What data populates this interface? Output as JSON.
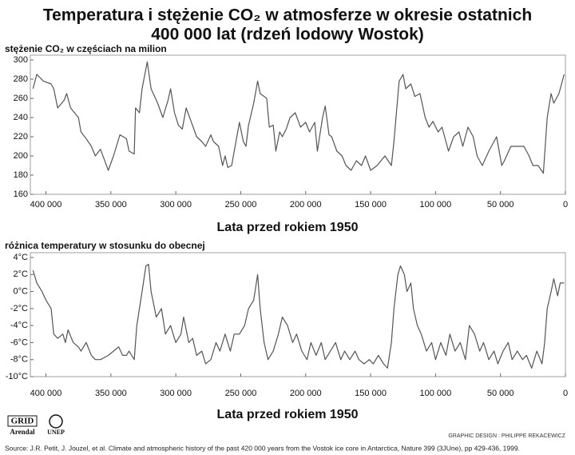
{
  "header": {
    "title_lines": [
      "Temperatura i stężenie CO₂ w atmosferze w okresie ostatnich",
      "400 000 lat (rdzeń lodowy Wostok)"
    ]
  },
  "chart_data": [
    {
      "type": "line",
      "y_label": "stężenie CO₂ w częściach na milion",
      "x_label": "Lata przed rokiem 1950",
      "xlim": [
        412000,
        0
      ],
      "ylim": [
        160,
        300
      ],
      "yticks": [
        160,
        180,
        200,
        220,
        240,
        260,
        280,
        300
      ],
      "xticks": [
        {
          "value": 400000,
          "label": "400 000"
        },
        {
          "value": 350000,
          "label": "350 000"
        },
        {
          "value": 300000,
          "label": "300 000"
        },
        {
          "value": 250000,
          "label": "250 000"
        },
        {
          "value": 200000,
          "label": "200 000"
        },
        {
          "value": 150000,
          "label": "150 000"
        },
        {
          "value": 100000,
          "label": "100 000"
        },
        {
          "value": 50000,
          "label": "50 000"
        },
        0
      ],
      "grid": false,
      "series": [
        {
          "name": "CO₂",
          "color": "#555555",
          "x": [
            410000,
            407000,
            402000,
            396000,
            394000,
            391000,
            386000,
            384000,
            381000,
            375000,
            373000,
            369000,
            365000,
            362000,
            358000,
            352000,
            348000,
            343000,
            338000,
            336000,
            332000,
            331000,
            328000,
            326000,
            322000,
            319000,
            314000,
            310000,
            306000,
            304000,
            301000,
            298000,
            295000,
            292000,
            288000,
            284000,
            280000,
            277000,
            273000,
            271000,
            267000,
            264000,
            262000,
            260000,
            257000,
            255000,
            251000,
            248000,
            246000,
            244000,
            240000,
            237000,
            235000,
            232000,
            230000,
            228000,
            225000,
            223000,
            220000,
            218000,
            215000,
            212000,
            208000,
            204000,
            200000,
            197000,
            193000,
            191000,
            187000,
            185000,
            182000,
            180000,
            176000,
            172000,
            169000,
            165000,
            161000,
            157000,
            154000,
            150000,
            145000,
            139000,
            134000,
            132000,
            128000,
            125000,
            123000,
            119000,
            116000,
            112000,
            108000,
            105000,
            102000,
            98000,
            95000,
            90000,
            86000,
            82000,
            79000,
            75000,
            71000,
            68000,
            64000,
            59000,
            53000,
            49000,
            47000,
            42000,
            37000,
            32000,
            28000,
            25000,
            21000,
            17000,
            14000,
            11000,
            9000,
            5000,
            1000
          ],
          "values": [
            270,
            285,
            278,
            275,
            270,
            250,
            258,
            265,
            250,
            240,
            225,
            218,
            210,
            200,
            207,
            185,
            200,
            222,
            218,
            205,
            202,
            250,
            245,
            270,
            298,
            270,
            255,
            240,
            258,
            270,
            245,
            232,
            228,
            250,
            235,
            220,
            215,
            210,
            222,
            215,
            210,
            190,
            200,
            188,
            190,
            205,
            235,
            215,
            210,
            232,
            255,
            278,
            265,
            262,
            260,
            230,
            232,
            205,
            225,
            220,
            228,
            240,
            245,
            230,
            235,
            225,
            235,
            205,
            240,
            252,
            222,
            220,
            205,
            200,
            190,
            185,
            195,
            190,
            200,
            185,
            190,
            200,
            190,
            215,
            278,
            285,
            270,
            275,
            262,
            265,
            240,
            230,
            236,
            225,
            230,
            205,
            220,
            225,
            210,
            230,
            220,
            200,
            190,
            205,
            220,
            190,
            195,
            210,
            210,
            210,
            200,
            190,
            190,
            182,
            240,
            265,
            255,
            265,
            285
          ]
        }
      ]
    },
    {
      "type": "line",
      "y_label": "różnica temperatury w stosunku do obecnej",
      "x_label": "Lata przed rokiem 1950",
      "xlim": [
        412000,
        0
      ],
      "ylim": [
        -10,
        4
      ],
      "yticks": [
        {
          "value": -10,
          "label": "-10°C"
        },
        {
          "value": -8,
          "label": "-8°C"
        },
        {
          "value": -6,
          "label": "-6°C"
        },
        {
          "value": -4,
          "label": "-4°C"
        },
        {
          "value": -2,
          "label": "-2°C"
        },
        {
          "value": 0,
          "label": "0°C"
        },
        {
          "value": 2,
          "label": "2°C"
        },
        {
          "value": 4,
          "label": "4°C"
        }
      ],
      "xticks": [
        {
          "value": 400000,
          "label": "400 000"
        },
        {
          "value": 350000,
          "label": "350 000"
        },
        {
          "value": 300000,
          "label": "300 000"
        },
        {
          "value": 250000,
          "label": "250 000"
        },
        {
          "value": 200000,
          "label": "200 000"
        },
        {
          "value": 150000,
          "label": "150 000"
        },
        {
          "value": 100000,
          "label": "100 000"
        },
        {
          "value": 50000,
          "label": "50 000"
        },
        0
      ],
      "grid": false,
      "series": [
        {
          "name": "temperatura",
          "color": "#555555",
          "x": [
            410000,
            407000,
            403000,
            400000,
            396000,
            394000,
            391000,
            387000,
            385000,
            383000,
            379000,
            375000,
            373000,
            369000,
            365000,
            362000,
            358000,
            352000,
            348000,
            344000,
            341000,
            338000,
            336000,
            332000,
            330000,
            326000,
            323000,
            321000,
            319000,
            315000,
            311000,
            308000,
            304000,
            300000,
            296000,
            294000,
            290000,
            287000,
            284000,
            280000,
            277000,
            273000,
            269000,
            266000,
            262000,
            258000,
            255000,
            251000,
            247000,
            244000,
            240000,
            237000,
            235000,
            232000,
            229000,
            225000,
            221000,
            218000,
            214000,
            210000,
            207000,
            203000,
            199000,
            196000,
            192000,
            188000,
            185000,
            181000,
            177000,
            173000,
            170000,
            166000,
            162000,
            159000,
            155000,
            151000,
            148000,
            144000,
            140000,
            137000,
            134000,
            132000,
            129000,
            127000,
            124000,
            122000,
            119000,
            117000,
            114000,
            111000,
            107000,
            103000,
            100000,
            96000,
            92000,
            89000,
            85000,
            81000,
            77000,
            74000,
            70000,
            66000,
            63000,
            59000,
            55000,
            52000,
            48000,
            44000,
            41000,
            37000,
            33000,
            30000,
            26000,
            22000,
            18000,
            16000,
            14000,
            11000,
            9000,
            6000,
            4000,
            1000
          ],
          "values": [
            2.5,
            1,
            0,
            -1,
            -2,
            -5,
            -5.5,
            -5,
            -6,
            -4.5,
            -6,
            -6.5,
            -7,
            -6,
            -7.5,
            -8,
            -8,
            -7.5,
            -7,
            -6.5,
            -7.5,
            -7.5,
            -7,
            -8,
            -4,
            0,
            3,
            3.2,
            0,
            -3,
            -2,
            -5,
            -4,
            -6,
            -5,
            -3,
            -6,
            -5.5,
            -7.5,
            -7,
            -8.5,
            -8,
            -6,
            -7,
            -5,
            -7,
            -5,
            -5,
            -4,
            -2,
            -1,
            2,
            -2,
            -6,
            -8,
            -7,
            -5,
            -3,
            -4,
            -6,
            -5,
            -7,
            -8,
            -6,
            -7.5,
            -6,
            -8,
            -7,
            -6,
            -8,
            -7,
            -8,
            -7,
            -8,
            -8.5,
            -8,
            -8.5,
            -7.5,
            -8.5,
            -9,
            -6,
            -2,
            2,
            3,
            2,
            0,
            1,
            -2,
            -4,
            -5,
            -7,
            -6,
            -8,
            -6,
            -7.5,
            -5,
            -7,
            -6,
            -8,
            -4,
            -5,
            -7,
            -6,
            -8,
            -7,
            -8.5,
            -7,
            -6,
            -8,
            -7,
            -8,
            -7.5,
            -9,
            -7,
            -8.5,
            -6,
            -2,
            0,
            1.5,
            -0.5,
            1,
            1
          ]
        }
      ]
    }
  ],
  "footer": {
    "logo_grid": "GRID",
    "logo_arendal": "Arendal",
    "logo_unep": "UNEP",
    "credit": "GRAPHIC DESIGN : PHILIPPE REKACEWICZ",
    "source": "Source: J.R. Petit, J. Jouzel, et al. Climate and atmospheric history of the past 420 000 years from the Vostok ice core in Antarctica, Nature 399 (3JUne), pp 429-436, 1999."
  }
}
